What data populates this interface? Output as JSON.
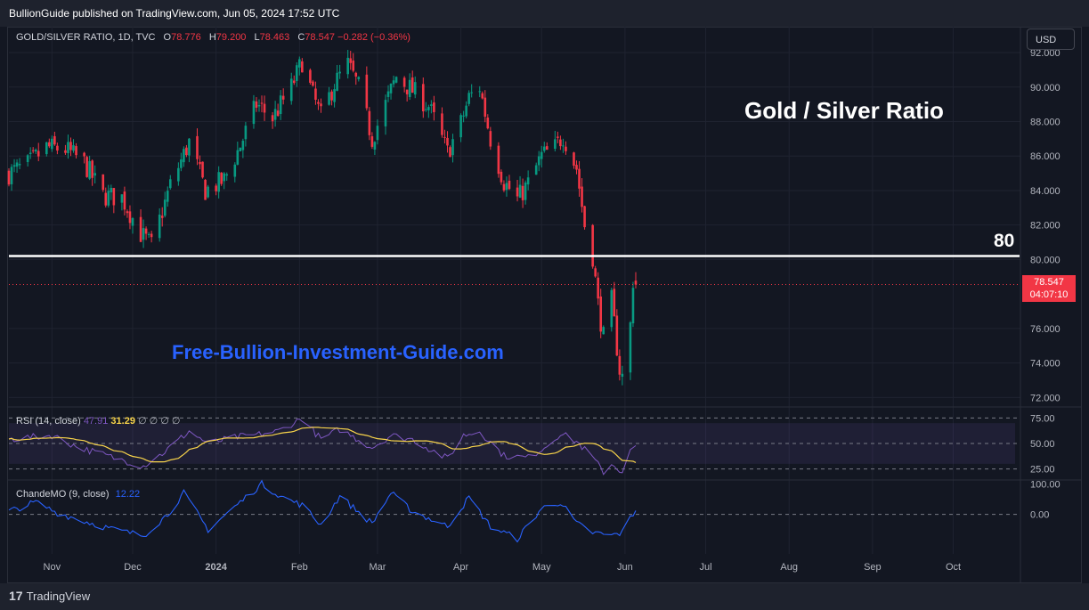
{
  "header": {
    "publisher": "BullionGuide published on TradingView.com, Jun 05, 2024 17:52 UTC"
  },
  "legend": {
    "symbol": "GOLD/SILVER RATIO, 1D, TVC",
    "o_label": "O",
    "o": "78.776",
    "h_label": "H",
    "h": "79.200",
    "l_label": "L",
    "l": "78.463",
    "c_label": "C",
    "c": "78.547",
    "change": "−0.282 (−0.36%)"
  },
  "currency_button": "USD",
  "annotations": {
    "title": "Gold / Silver Ratio",
    "level_label": "80",
    "watermark": "Free-Bullion-Investment-Guide.com"
  },
  "price_tag": {
    "price": "78.547",
    "countdown": "04:07:10"
  },
  "rsi_legend": {
    "name": "RSI (14, close)",
    "rsi": "47.91",
    "ma": "31.29",
    "extra": "∅ ∅ ∅ ∅"
  },
  "cmo_legend": {
    "name": "ChandeMO (9, close)",
    "value": "12.22"
  },
  "footer": {
    "brand": "TradingView"
  },
  "colors": {
    "background": "#131722",
    "up": "#089981",
    "down": "#f23645",
    "rsi_line": "#7e57c2",
    "rsi_ma": "#f7d34a",
    "cmo_line": "#2962ff",
    "level_line": "#ffffff",
    "watermark": "#2962ff"
  },
  "chart_data": [
    {
      "type": "candlestick",
      "title": "Gold / Silver Ratio",
      "y_ticks": [
        "92.000",
        "90.000",
        "88.000",
        "86.000",
        "84.000",
        "82.000",
        "80.000",
        "76.000",
        "74.000",
        "72.000"
      ],
      "ylim": [
        71.5,
        93.5
      ],
      "x_ticks": [
        "Nov",
        "Dec",
        "2024",
        "Feb",
        "Mar",
        "Apr",
        "May",
        "Jun",
        "Jul",
        "Aug",
        "Sep",
        "Oct"
      ],
      "horizontal_line": 80.2,
      "last_price": 78.547,
      "anchors": [
        [
          "2023-10-16",
          85.0
        ],
        [
          "2023-10-23",
          85.5
        ],
        [
          "2023-10-30",
          86.5
        ],
        [
          "2023-11-06",
          86.4
        ],
        [
          "2023-11-13",
          85.6
        ],
        [
          "2023-11-20",
          83.7
        ],
        [
          "2023-11-27",
          83.6
        ],
        [
          "2023-12-04",
          81.5
        ],
        [
          "2023-12-08",
          80.8
        ],
        [
          "2023-12-15",
          84.3
        ],
        [
          "2023-12-22",
          86.8
        ],
        [
          "2023-12-28",
          84.0
        ],
        [
          "2024-01-04",
          84.6
        ],
        [
          "2024-01-10",
          86.6
        ],
        [
          "2024-01-16",
          89.0
        ],
        [
          "2024-01-22",
          88.2
        ],
        [
          "2024-01-29",
          90.0
        ],
        [
          "2024-02-02",
          91.5
        ],
        [
          "2024-02-06",
          89.5
        ],
        [
          "2024-02-09",
          88.3
        ],
        [
          "2024-02-14",
          90.2
        ],
        [
          "2024-02-19",
          91.3
        ],
        [
          "2024-02-23",
          90.0
        ],
        [
          "2024-02-28",
          87.0
        ],
        [
          "2024-03-04",
          89.0
        ],
        [
          "2024-03-08",
          90.6
        ],
        [
          "2024-03-14",
          89.8
        ],
        [
          "2024-03-20",
          88.9
        ],
        [
          "2024-03-27",
          86.2
        ],
        [
          "2024-04-01",
          87.9
        ],
        [
          "2024-04-04",
          89.4
        ],
        [
          "2024-04-08",
          90.0
        ],
        [
          "2024-04-12",
          87.0
        ],
        [
          "2024-04-17",
          84.5
        ],
        [
          "2024-04-22",
          83.5
        ],
        [
          "2024-04-26",
          84.4
        ],
        [
          "2024-05-01",
          86.0
        ],
        [
          "2024-05-06",
          86.5
        ],
        [
          "2024-05-09",
          87.2
        ],
        [
          "2024-05-14",
          85.3
        ],
        [
          "2024-05-17",
          82.0
        ],
        [
          "2024-05-20",
          80.2
        ],
        [
          "2024-05-22",
          77.4
        ],
        [
          "2024-05-24",
          75.5
        ],
        [
          "2024-05-27",
          77.6
        ],
        [
          "2024-05-30",
          73.6
        ],
        [
          "2024-05-31",
          73.2
        ],
        [
          "2024-06-03",
          76.2
        ],
        [
          "2024-06-04",
          78.8
        ],
        [
          "2024-06-05",
          78.55
        ]
      ]
    },
    {
      "type": "line",
      "name": "RSI (14, close)",
      "y_ticks": [
        "75.00",
        "50.00",
        "25.00"
      ],
      "ylim": [
        15,
        85
      ],
      "band": [
        30,
        70
      ],
      "last_rsi": 47.91,
      "last_ma": 31.29,
      "anchors": [
        [
          "2023-10-16",
          54
        ],
        [
          "2023-11-01",
          58
        ],
        [
          "2023-11-10",
          47
        ],
        [
          "2023-11-24",
          36
        ],
        [
          "2023-12-05",
          28
        ],
        [
          "2023-12-12",
          40
        ],
        [
          "2023-12-22",
          62
        ],
        [
          "2023-12-29",
          50
        ],
        [
          "2024-01-08",
          56
        ],
        [
          "2024-01-15",
          58
        ],
        [
          "2024-01-24",
          62
        ],
        [
          "2024-02-02",
          75
        ],
        [
          "2024-02-09",
          54
        ],
        [
          "2024-02-16",
          64
        ],
        [
          "2024-02-28",
          46
        ],
        [
          "2024-03-06",
          58
        ],
        [
          "2024-03-14",
          54
        ],
        [
          "2024-03-27",
          35
        ],
        [
          "2024-04-02",
          58
        ],
        [
          "2024-04-08",
          62
        ],
        [
          "2024-04-17",
          38
        ],
        [
          "2024-04-26",
          36
        ],
        [
          "2024-05-03",
          48
        ],
        [
          "2024-05-08",
          60
        ],
        [
          "2024-05-14",
          52
        ],
        [
          "2024-05-20",
          36
        ],
        [
          "2024-05-24",
          22
        ],
        [
          "2024-05-27",
          30
        ],
        [
          "2024-05-31",
          22
        ],
        [
          "2024-06-03",
          42
        ],
        [
          "2024-06-05",
          47.91
        ]
      ]
    },
    {
      "type": "line",
      "name": "ChandeMO (9, close)",
      "y_ticks": [
        "100.00",
        "0.00"
      ],
      "ylim": [
        -130,
        110
      ],
      "last_value": 12.22,
      "anchors": [
        [
          "2023-10-16",
          10
        ],
        [
          "2023-10-26",
          40
        ],
        [
          "2023-11-03",
          5
        ],
        [
          "2023-11-14",
          -25
        ],
        [
          "2023-11-24",
          -50
        ],
        [
          "2023-12-05",
          -70
        ],
        [
          "2023-12-14",
          0
        ],
        [
          "2023-12-20",
          70
        ],
        [
          "2023-12-29",
          -50
        ],
        [
          "2024-01-10",
          40
        ],
        [
          "2024-01-18",
          100
        ],
        [
          "2024-01-26",
          55
        ],
        [
          "2024-02-02",
          30
        ],
        [
          "2024-02-09",
          -35
        ],
        [
          "2024-02-16",
          60
        ],
        [
          "2024-02-28",
          -30
        ],
        [
          "2024-03-06",
          70
        ],
        [
          "2024-03-14",
          10
        ],
        [
          "2024-03-27",
          -40
        ],
        [
          "2024-04-04",
          55
        ],
        [
          "2024-04-12",
          -40
        ],
        [
          "2024-04-22",
          -80
        ],
        [
          "2024-05-01",
          20
        ],
        [
          "2024-05-08",
          40
        ],
        [
          "2024-05-14",
          -30
        ],
        [
          "2024-05-20",
          -60
        ],
        [
          "2024-05-27",
          -70
        ],
        [
          "2024-05-31",
          -60
        ],
        [
          "2024-06-03",
          -10
        ],
        [
          "2024-06-05",
          12.22
        ]
      ]
    }
  ]
}
